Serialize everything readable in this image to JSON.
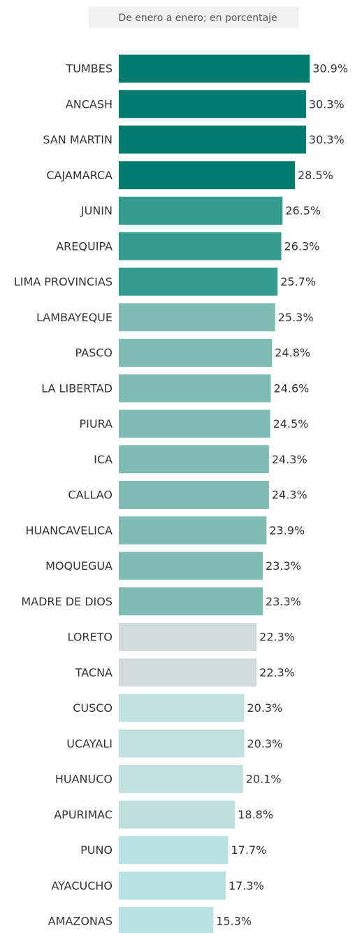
{
  "chart_data": {
    "type": "bar",
    "orientation": "horizontal",
    "subtitle": "De enero a enero; en porcentaje",
    "categories": [
      "TUMBES",
      "ANCASH",
      "SAN MARTIN",
      "CAJAMARCA",
      "JUNIN",
      "AREQUIPA",
      "LIMA PROVINCIAS",
      "LAMBAYEQUE",
      "PASCO",
      "LA LIBERTAD",
      "PIURA",
      "ICA",
      "CALLAO",
      "HUANCAVELICA",
      "MOQUEGUA",
      "MADRE DE DIOS",
      "LORETO",
      "TACNA",
      "CUSCO",
      "UCAYALI",
      "HUANUCO",
      "APURIMAC",
      "PUNO",
      "AYACUCHO",
      "AMAZONAS"
    ],
    "values": [
      30.9,
      30.3,
      30.3,
      28.5,
      26.5,
      26.3,
      25.7,
      25.3,
      24.8,
      24.6,
      24.5,
      24.3,
      24.3,
      23.9,
      23.3,
      23.3,
      22.3,
      22.3,
      20.3,
      20.3,
      20.1,
      18.8,
      17.7,
      17.3,
      15.3
    ],
    "value_labels": [
      "30.9%",
      "30.3%",
      "30.3%",
      "28.5%",
      "26.5%",
      "26.3%",
      "25.7%",
      "25.3%",
      "24.8%",
      "24.6%",
      "24.5%",
      "24.3%",
      "24.3%",
      "23.9%",
      "23.3%",
      "23.3%",
      "22.3%",
      "22.3%",
      "20.3%",
      "20.3%",
      "20.1%",
      "18.8%",
      "17.7%",
      "17.3%",
      "15.3%"
    ],
    "colors": [
      "#007b6e",
      "#007b6e",
      "#007b6e",
      "#007b6e",
      "#339b8f",
      "#339b8f",
      "#339b8f",
      "#7fbcb4",
      "#7fbcb4",
      "#7fbcb4",
      "#7fbcb4",
      "#7fbcb4",
      "#7fbcb4",
      "#7fbcb4",
      "#7fbcb4",
      "#7fbcb4",
      "#d0dcdc",
      "#d0dcdc",
      "#c2e0e0",
      "#c2e0e0",
      "#c2e0e0",
      "#bde0df",
      "#b8e2e1",
      "#b8e2e1",
      "#b8e2e1"
    ],
    "xlim": [
      0,
      38
    ]
  }
}
